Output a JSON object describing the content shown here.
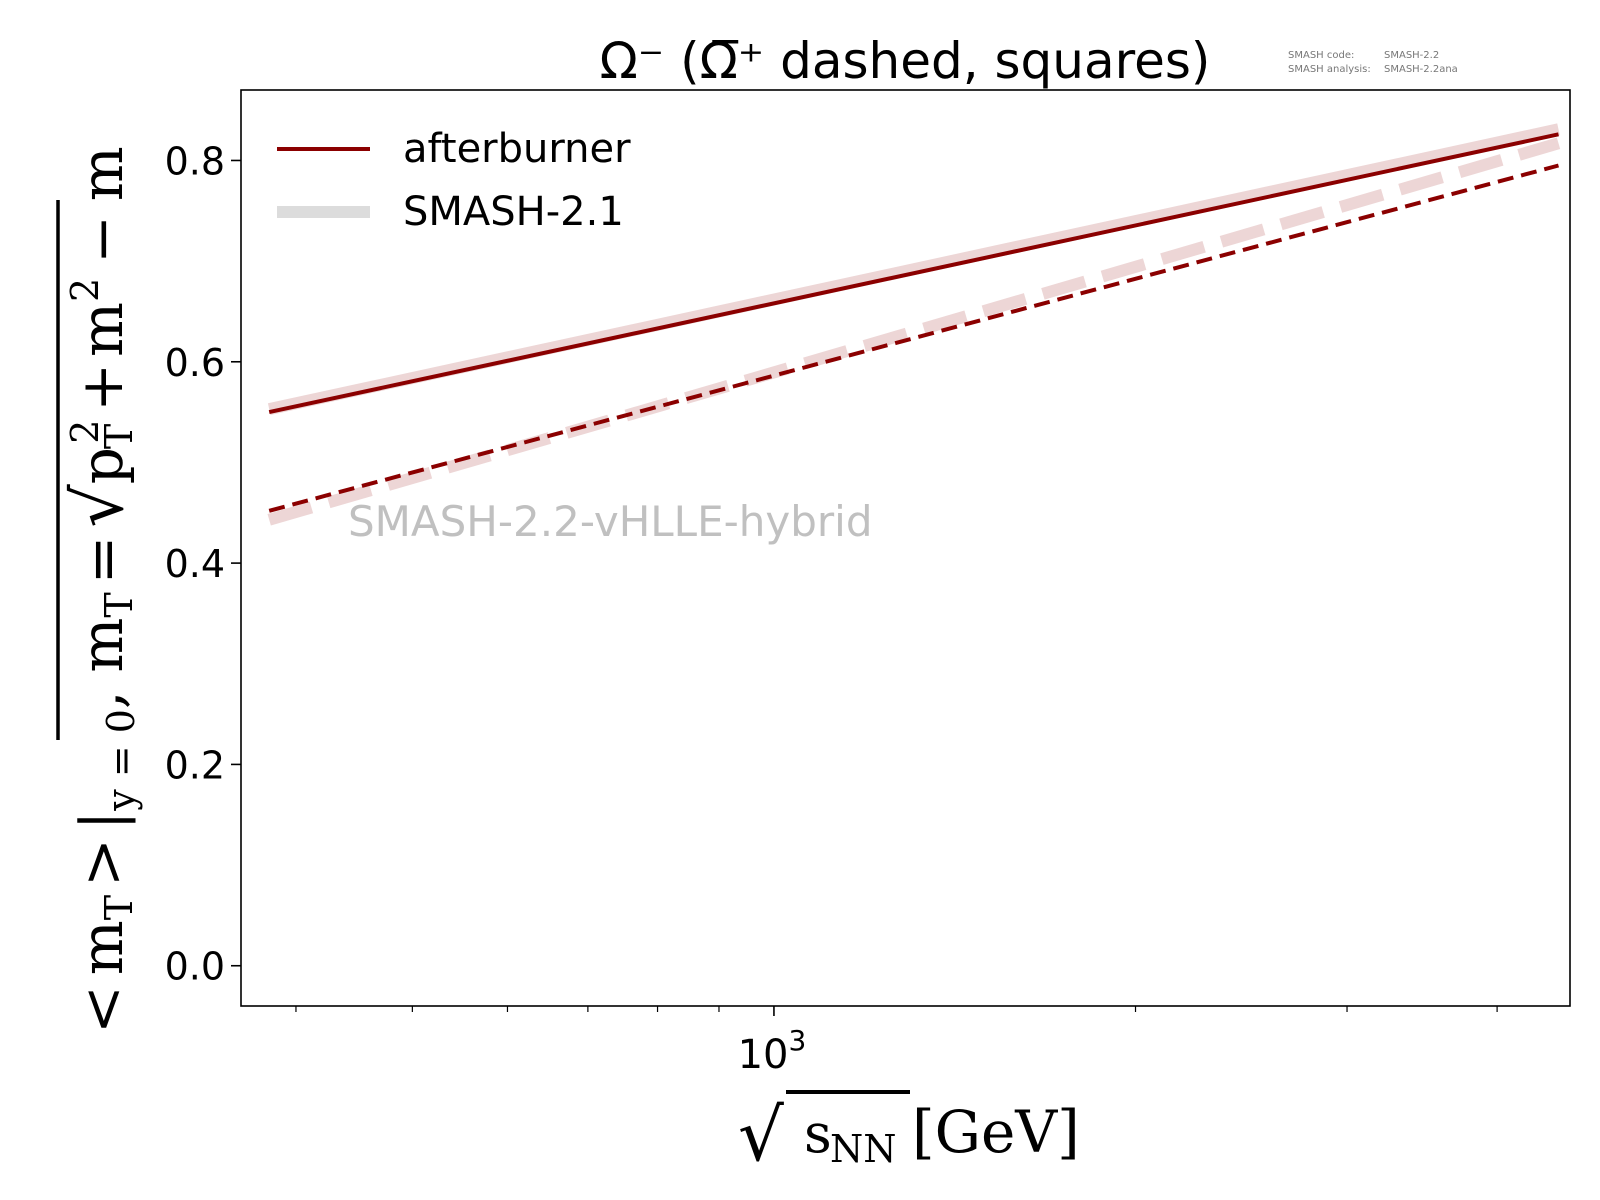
{
  "chart_data": {
    "type": "line",
    "title": "Ω⁻ (Ω̅⁺ dashed, squares)",
    "meta_lines": [
      {
        "label": "SMASH code:",
        "value": "SMASH-2.2"
      },
      {
        "label": "SMASH analysis:",
        "value": "SMASH-2.2ana"
      }
    ],
    "watermark": "SMASH-2.2-vHLLE-hybrid",
    "x_scale": "log",
    "xlim": [
      360,
      4600
    ],
    "ylim": [
      -0.04,
      0.87
    ],
    "x_ticks": [
      {
        "value": 1000,
        "base": "10",
        "exp": "3"
      }
    ],
    "x_minor_ticks": [
      400,
      500,
      600,
      700,
      800,
      900,
      2000,
      3000,
      4000
    ],
    "y_ticks": [
      0.0,
      0.2,
      0.4,
      0.6,
      0.8
    ],
    "y_tick_labels": [
      "0.0",
      "0.2",
      "0.4",
      "0.6",
      "0.8"
    ],
    "xlabel": {
      "root": "√",
      "var": "s",
      "sub": "NN",
      "unit": "[GeV]"
    },
    "ylabel": {
      "lt": "<",
      "m": "m",
      "m_sub": "T",
      "gt": ">",
      "bar": "|",
      "y_sub": "y = 0",
      "comma": ",",
      "mT": "m",
      "mT_sub": "T",
      "eq": "=",
      "root": "√",
      "pT": "p",
      "pT_sub": "T",
      "sq": "2",
      "plus": "+",
      "m2": "m",
      "m2_sup": "2",
      "minus": "−",
      "mend": "m"
    },
    "legend": {
      "placement": "upper-left",
      "entries": [
        {
          "label": "afterburner",
          "color": "#8b0000",
          "style": "solid"
        },
        {
          "label": "SMASH-2.1",
          "color": "#dcdcdc",
          "style": "solid-thick"
        }
      ]
    },
    "x": [
      380,
      4500
    ],
    "series": [
      {
        "name": "afterburner",
        "variant": "Ω⁻",
        "color": "#8b0000",
        "dash": false,
        "values": [
          0.55,
          0.826
        ]
      },
      {
        "name": "afterburner",
        "variant": "Ω̅⁺",
        "color": "#8b0000",
        "dash": true,
        "values": [
          0.452,
          0.795
        ]
      },
      {
        "name": "SMASH-2.1",
        "variant": "Ω⁻",
        "color": "#e8cccc",
        "dash": false,
        "values": [
          0.553,
          0.831
        ]
      },
      {
        "name": "SMASH-2.1",
        "variant": "Ω̅⁺",
        "color": "#e8cccc",
        "dash": true,
        "values": [
          0.443,
          0.817
        ]
      }
    ]
  }
}
